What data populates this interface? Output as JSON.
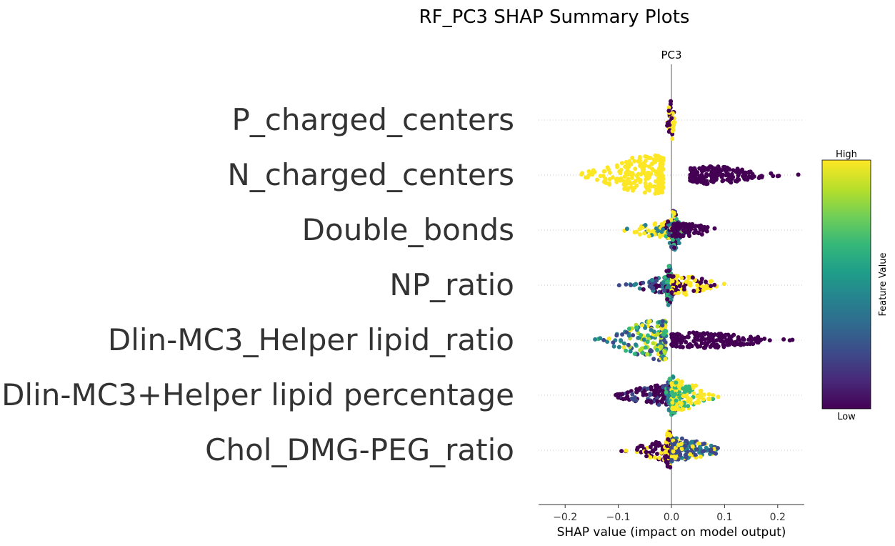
{
  "chart_data": {
    "type": "scatter",
    "subtype": "shap-beeswarm",
    "suptitle": "RF_PC3 SHAP Summary Plots",
    "panel_title": "PC3",
    "xlabel": "SHAP value (impact on model output)",
    "xlim": [
      -0.25,
      0.25
    ],
    "xticks": [
      -0.2,
      -0.1,
      0.0,
      0.1,
      0.2
    ],
    "xtick_labels": [
      "−0.2",
      "−0.1",
      "0.0",
      "0.1",
      "0.2"
    ],
    "colorbar": {
      "label": "Feature Value",
      "high_label": "High",
      "low_label": "Low",
      "colormap": [
        "#440154",
        "#482878",
        "#3e4989",
        "#31688e",
        "#26828e",
        "#1f9e89",
        "#35b779",
        "#6ece58",
        "#b5de2b",
        "#fde725"
      ]
    },
    "zero_line_color": "#999999",
    "features": [
      {
        "name": "P_charged_centers",
        "groups": [
          {
            "min": -0.02,
            "max": 0.01,
            "peak": 0.0,
            "spread": 0.004,
            "count": 40,
            "colors": [
              "yellow",
              "dark"
            ],
            "height": 1.0
          }
        ]
      },
      {
        "name": "N_charged_centers",
        "groups": [
          {
            "min": -0.17,
            "max": -0.015,
            "peak": -0.04,
            "spread": 0.05,
            "count": 230,
            "colors": [
              "yellow"
            ],
            "height": 1.0
          },
          {
            "min": 0.035,
            "max": 0.25,
            "peak": 0.075,
            "spread": 0.05,
            "count": 200,
            "colors": [
              "dark"
            ],
            "height": 0.45
          }
        ]
      },
      {
        "name": "Double_bonds",
        "groups": [
          {
            "min": -0.12,
            "max": 0.0,
            "peak": -0.01,
            "spread": 0.035,
            "count": 110,
            "colors": [
              "yellow",
              "yellow",
              "yellow",
              "teal"
            ],
            "height": 0.4
          },
          {
            "min": -0.02,
            "max": 0.03,
            "peak": 0.005,
            "spread": 0.008,
            "count": 130,
            "colors": [
              "teal",
              "blue",
              "dark",
              "yellow",
              "green"
            ],
            "height": 1.0
          },
          {
            "min": 0.0,
            "max": 0.12,
            "peak": 0.02,
            "spread": 0.03,
            "count": 90,
            "colors": [
              "dark"
            ],
            "height": 0.35
          }
        ]
      },
      {
        "name": "NP_ratio",
        "groups": [
          {
            "min": -0.1,
            "max": 0.0,
            "peak": -0.01,
            "spread": 0.03,
            "count": 100,
            "colors": [
              "dark",
              "blue",
              "teal"
            ],
            "height": 0.4
          },
          {
            "min": -0.015,
            "max": 0.01,
            "peak": -0.005,
            "spread": 0.005,
            "count": 90,
            "colors": [
              "teal",
              "blue",
              "dark",
              "green"
            ],
            "height": 1.0
          },
          {
            "min": 0.0,
            "max": 0.15,
            "peak": 0.015,
            "spread": 0.035,
            "count": 120,
            "colors": [
              "yellow",
              "yellow",
              "dark"
            ],
            "height": 0.5
          }
        ]
      },
      {
        "name": "Dlin-MC3_Helper lipid_ratio",
        "groups": [
          {
            "min": -0.17,
            "max": -0.01,
            "peak": -0.025,
            "spread": 0.045,
            "count": 200,
            "colors": [
              "blue",
              "teal",
              "green",
              "yellow",
              "lime"
            ],
            "height": 1.0
          },
          {
            "min": 0.0,
            "max": 0.25,
            "peak": 0.06,
            "spread": 0.06,
            "count": 200,
            "colors": [
              "dark"
            ],
            "height": 0.4
          }
        ]
      },
      {
        "name": "Dlin-MC3+Helper lipid percentage",
        "groups": [
          {
            "min": -0.185,
            "max": 0.0,
            "peak": -0.01,
            "spread": 0.05,
            "count": 170,
            "colors": [
              "dark",
              "dark",
              "blue"
            ],
            "height": 0.5
          },
          {
            "min": -0.01,
            "max": 0.02,
            "peak": 0.002,
            "spread": 0.007,
            "count": 110,
            "colors": [
              "teal",
              "blue",
              "green"
            ],
            "height": 1.0
          },
          {
            "min": 0.0,
            "max": 0.125,
            "peak": 0.015,
            "spread": 0.03,
            "count": 150,
            "colors": [
              "yellow",
              "yellow",
              "green"
            ],
            "height": 0.75
          }
        ]
      },
      {
        "name": "Chol_DMG-PEG_ratio",
        "groups": [
          {
            "min": -0.125,
            "max": 0.0,
            "peak": -0.01,
            "spread": 0.03,
            "count": 110,
            "colors": [
              "dark",
              "dark",
              "yellow"
            ],
            "height": 0.5
          },
          {
            "min": -0.015,
            "max": 0.005,
            "peak": -0.005,
            "spread": 0.004,
            "count": 70,
            "colors": [
              "dark",
              "yellow"
            ],
            "height": 1.0
          },
          {
            "min": 0.0,
            "max": 0.145,
            "peak": 0.015,
            "spread": 0.035,
            "count": 180,
            "colors": [
              "blue",
              "blue",
              "yellow",
              "teal"
            ],
            "height": 0.6
          }
        ]
      }
    ],
    "color_map": {
      "dark": "#440154",
      "blue": "#3e4989",
      "teal": "#26828e",
      "green": "#35b779",
      "lime": "#b5de2b",
      "yellow": "#fde725"
    }
  }
}
